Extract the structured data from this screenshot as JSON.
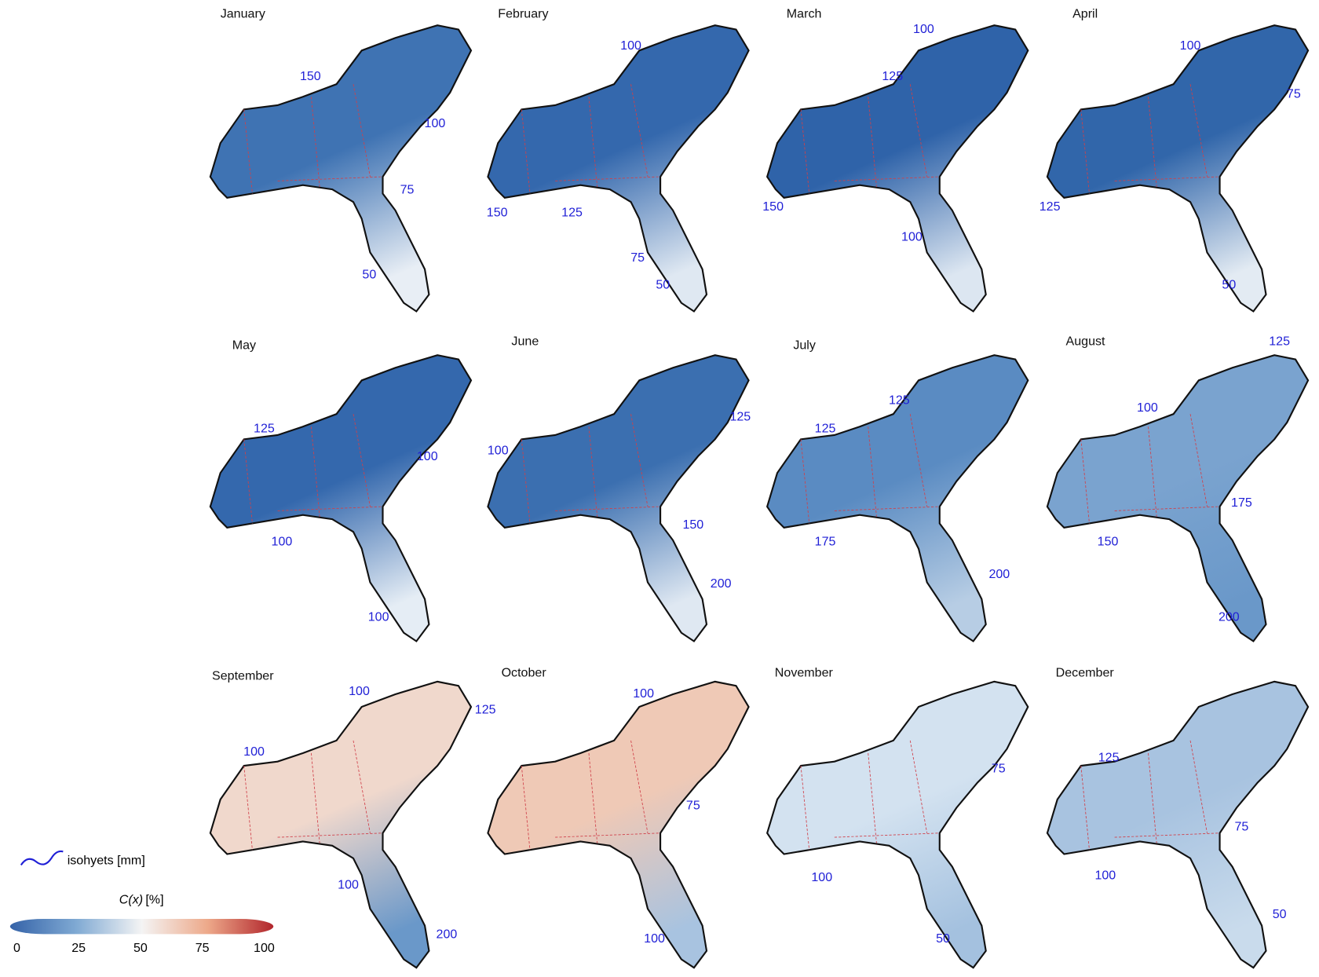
{
  "panels": [
    {
      "month": "January",
      "isohyets": [
        "150",
        "100",
        "75",
        "50"
      ]
    },
    {
      "month": "February",
      "isohyets": [
        "100",
        "150",
        "125",
        "75",
        "50"
      ]
    },
    {
      "month": "March",
      "isohyets": [
        "100",
        "125",
        "150",
        "100"
      ]
    },
    {
      "month": "April",
      "isohyets": [
        "100",
        "75",
        "125",
        "50"
      ]
    },
    {
      "month": "May",
      "isohyets": [
        "125",
        "100",
        "100",
        "100"
      ]
    },
    {
      "month": "June",
      "isohyets": [
        "125",
        "100",
        "150",
        "200"
      ]
    },
    {
      "month": "July",
      "isohyets": [
        "125",
        "125",
        "175",
        "200"
      ]
    },
    {
      "month": "August",
      "isohyets": [
        "125",
        "100",
        "175",
        "150",
        "200"
      ]
    },
    {
      "month": "September",
      "isohyets": [
        "100",
        "125",
        "100",
        "100",
        "200"
      ]
    },
    {
      "month": "October",
      "isohyets": [
        "100",
        "75",
        "100"
      ]
    },
    {
      "month": "November",
      "isohyets": [
        "75",
        "100",
        "50"
      ]
    },
    {
      "month": "December",
      "isohyets": [
        "125",
        "75",
        "100",
        "50"
      ]
    }
  ],
  "legend": {
    "isohyet_label": "isohyets [mm]",
    "colorbar": {
      "title_var": "C(x)",
      "title_unit": "[%]",
      "ticks": [
        "0",
        "25",
        "50",
        "75",
        "100"
      ]
    }
  }
}
